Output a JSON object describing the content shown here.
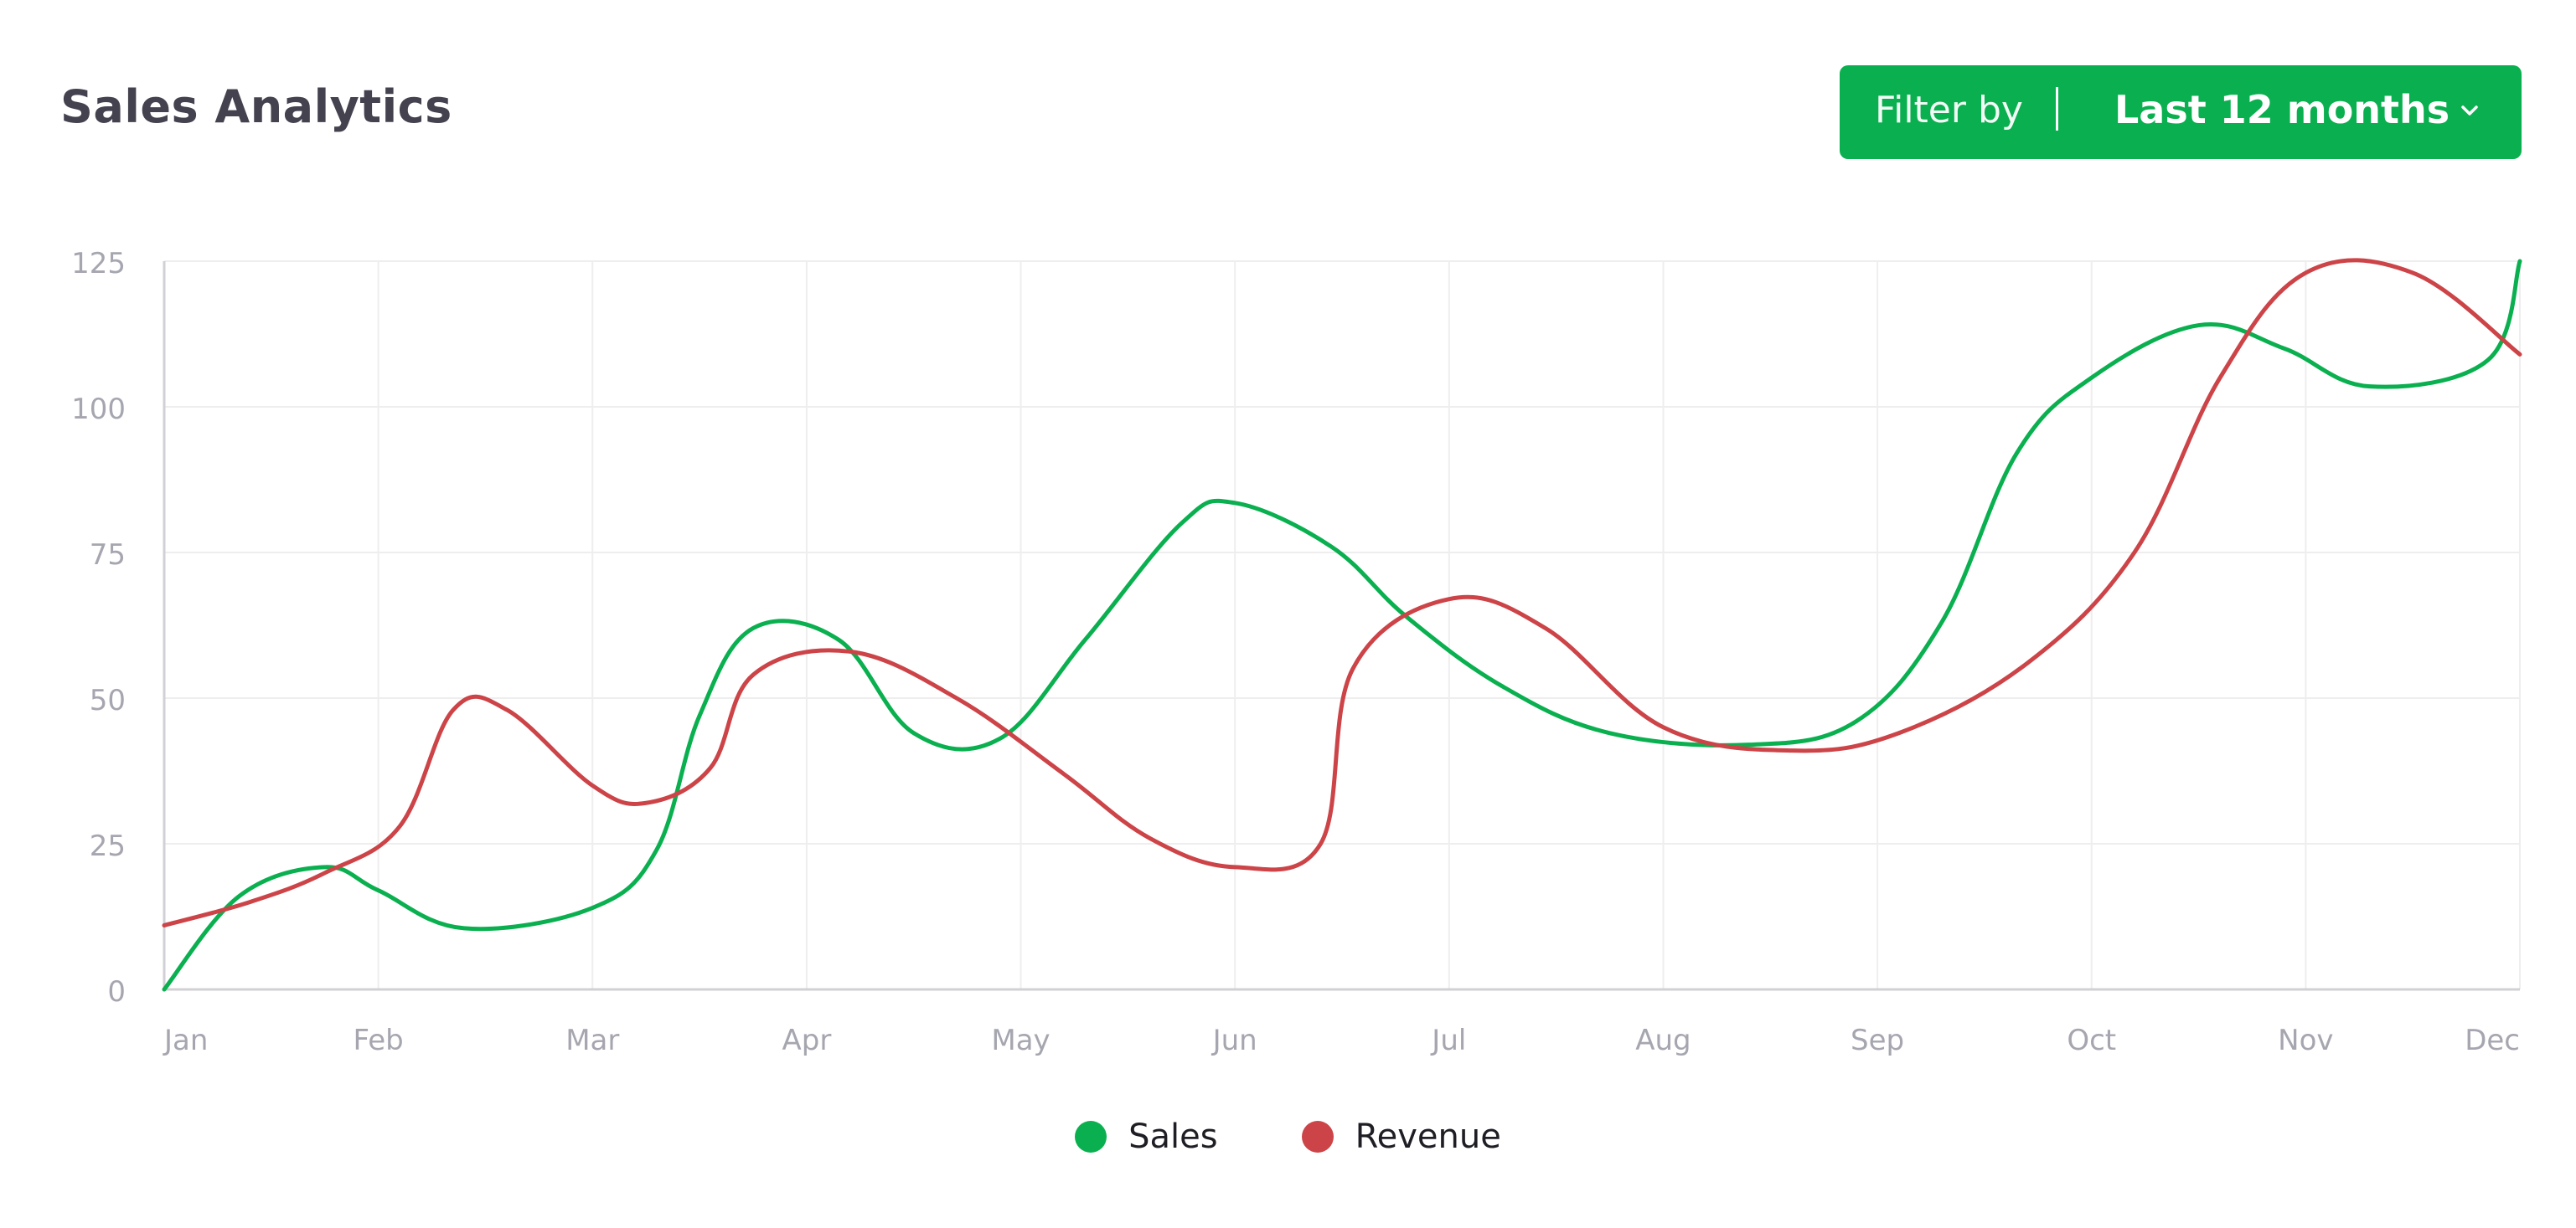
{
  "header": {
    "title": "Sales Analytics"
  },
  "filter": {
    "label": "Filter by",
    "value": "Last 12 months",
    "chevron_icon": "chevron-down-icon"
  },
  "colors": {
    "sales": "#0ab04f",
    "revenue": "#cc4448",
    "grid": "#eeeeee",
    "axis_text": "#a6a6b0"
  },
  "chart_data": {
    "type": "line",
    "title": "Sales Analytics",
    "xlabel": "",
    "ylabel": "",
    "categories": [
      "Jan",
      "Feb",
      "Mar",
      "Apr",
      "May",
      "Jun",
      "Jul",
      "Aug",
      "Sep",
      "Oct",
      "Nov",
      "Dec"
    ],
    "ylim": [
      0,
      125
    ],
    "yticks": [
      0,
      25,
      50,
      75,
      100,
      125
    ],
    "grid": true,
    "legend_position": "bottom-center",
    "series": [
      {
        "name": "Sales",
        "color": "#0ab04f",
        "points": [
          [
            0,
            0
          ],
          [
            0.35,
            16
          ],
          [
            0.75,
            21
          ],
          [
            1.0,
            17
          ],
          [
            1.4,
            10.5
          ],
          [
            2.0,
            14
          ],
          [
            2.3,
            24
          ],
          [
            2.5,
            47
          ],
          [
            2.75,
            62
          ],
          [
            3.15,
            60
          ],
          [
            3.5,
            44
          ],
          [
            3.9,
            43
          ],
          [
            4.3,
            60
          ],
          [
            4.75,
            80
          ],
          [
            5.0,
            83.5
          ],
          [
            5.45,
            76
          ],
          [
            5.8,
            64
          ],
          [
            6.25,
            52
          ],
          [
            6.75,
            44
          ],
          [
            7.4,
            42
          ],
          [
            7.9,
            46
          ],
          [
            8.3,
            63
          ],
          [
            8.65,
            92
          ],
          [
            9.0,
            105
          ],
          [
            9.5,
            114
          ],
          [
            9.9,
            110
          ],
          [
            10.3,
            103.5
          ],
          [
            10.85,
            108
          ],
          [
            11.0,
            125
          ]
        ]
      },
      {
        "name": "Revenue",
        "color": "#cc4448",
        "points": [
          [
            0,
            11
          ],
          [
            0.4,
            15
          ],
          [
            0.75,
            20
          ],
          [
            1.1,
            28
          ],
          [
            1.35,
            48
          ],
          [
            1.6,
            48
          ],
          [
            2.0,
            35
          ],
          [
            2.25,
            32
          ],
          [
            2.55,
            38
          ],
          [
            2.75,
            54
          ],
          [
            3.2,
            58
          ],
          [
            3.7,
            50
          ],
          [
            4.2,
            37
          ],
          [
            4.6,
            26
          ],
          [
            5.0,
            21
          ],
          [
            5.4,
            25
          ],
          [
            5.55,
            55
          ],
          [
            6.0,
            67
          ],
          [
            6.45,
            62
          ],
          [
            7.0,
            45
          ],
          [
            7.6,
            41
          ],
          [
            8.1,
            44
          ],
          [
            8.7,
            56
          ],
          [
            9.2,
            75
          ],
          [
            9.6,
            105
          ],
          [
            10.0,
            123
          ],
          [
            10.5,
            123
          ],
          [
            11.0,
            109
          ]
        ]
      }
    ]
  },
  "legend": {
    "sales_label": "Sales",
    "revenue_label": "Revenue"
  }
}
